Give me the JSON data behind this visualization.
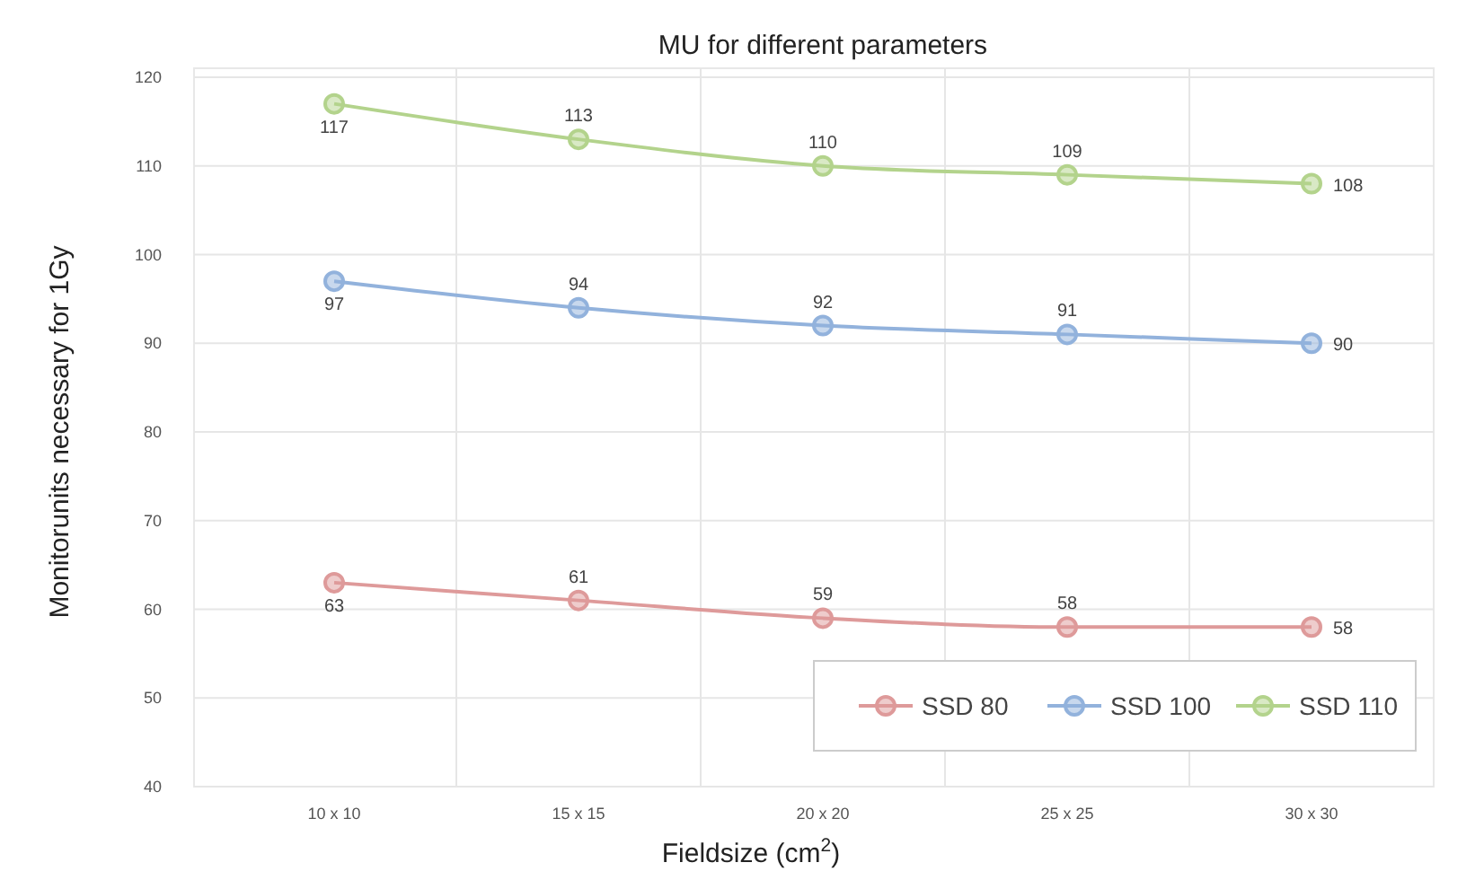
{
  "chart_data": {
    "type": "line",
    "title": "MU for different parameters",
    "xlabel": "Fieldsize (cm$^{2}$)",
    "ylabel": "Monitorunits necessary for 1Gy",
    "categories": [
      "10 x 10",
      "15 x 15",
      "20 x 20",
      "25 x 25",
      "30 x 30"
    ],
    "series": [
      {
        "name": "SSD 80",
        "color": "#de9a9a",
        "values": [
          63,
          61,
          59,
          58,
          58
        ]
      },
      {
        "name": "SSD 100",
        "color": "#92b2dc",
        "values": [
          97,
          94,
          92,
          91,
          90
        ]
      },
      {
        "name": "SSD 110",
        "color": "#b3d38c",
        "values": [
          117,
          113,
          110,
          109,
          108
        ]
      }
    ],
    "ylim": [
      40,
      120
    ],
    "yticks": [
      40,
      50,
      60,
      70,
      80,
      90,
      100,
      110,
      120
    ],
    "grid": true,
    "legend": "bottom right",
    "marker": "circle",
    "line_style": "solid",
    "data_labels": true
  }
}
